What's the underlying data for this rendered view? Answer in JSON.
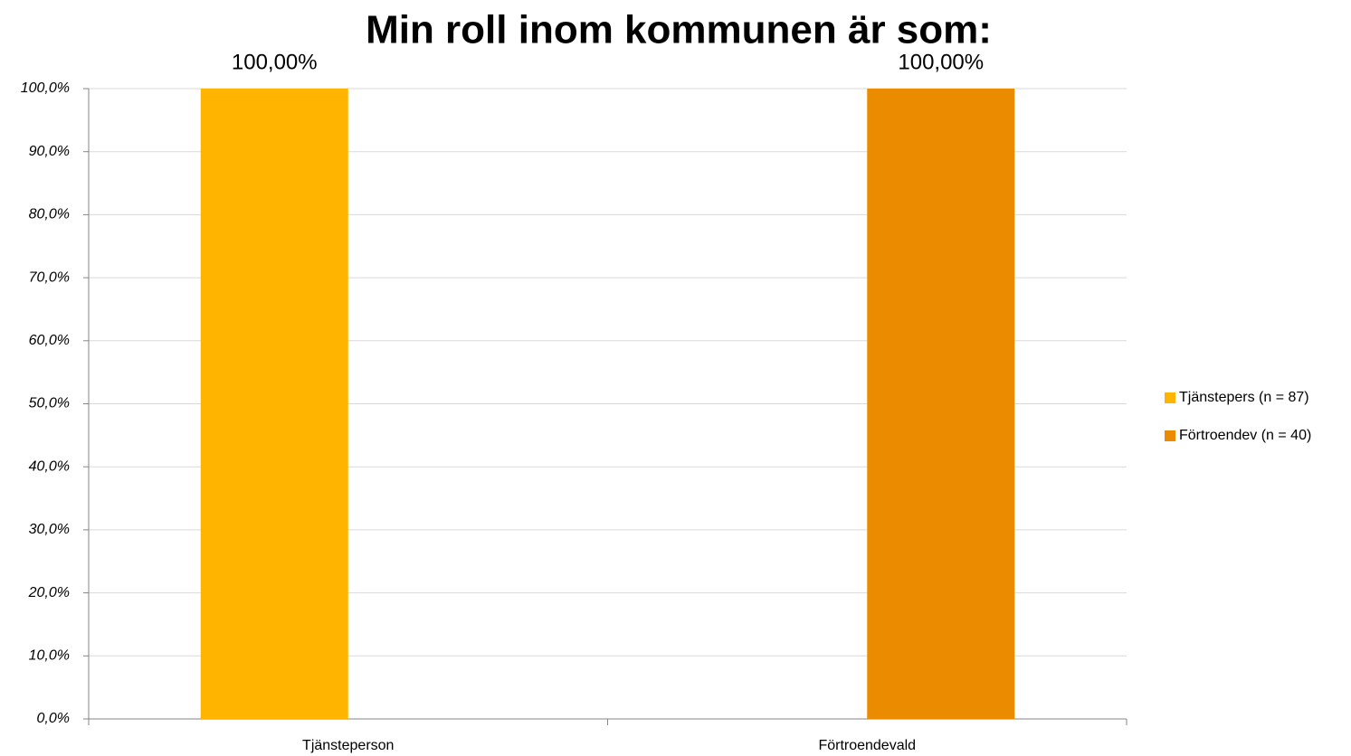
{
  "chart_data": {
    "type": "bar",
    "title": "Min roll inom kommunen är som:",
    "categories": [
      "Tjänsteperson",
      "Förtroendevald"
    ],
    "series": [
      {
        "name": "Tjänstepers (n = 87)",
        "color": "#ffb400",
        "values": [
          100,
          null
        ],
        "value_labels": [
          "100,00%",
          null
        ]
      },
      {
        "name": "Förtroendev (n = 40)",
        "color": "#eb8c00",
        "values": [
          null,
          100
        ],
        "value_labels": [
          null,
          "100,00%"
        ]
      }
    ],
    "ylim": [
      0,
      100
    ],
    "yticks": [
      {
        "value": 0,
        "label": "0,0%"
      },
      {
        "value": 10,
        "label": "10,0%"
      },
      {
        "value": 20,
        "label": "20,0%"
      },
      {
        "value": 30,
        "label": "30,0%"
      },
      {
        "value": 40,
        "label": "40,0%"
      },
      {
        "value": 50,
        "label": "50,0%"
      },
      {
        "value": 60,
        "label": "60,0%"
      },
      {
        "value": 70,
        "label": "70,0%"
      },
      {
        "value": 80,
        "label": "80,0%"
      },
      {
        "value": 90,
        "label": "90,0%"
      },
      {
        "value": 100,
        "label": "100,0%"
      }
    ],
    "grid": true,
    "legend": "right"
  }
}
